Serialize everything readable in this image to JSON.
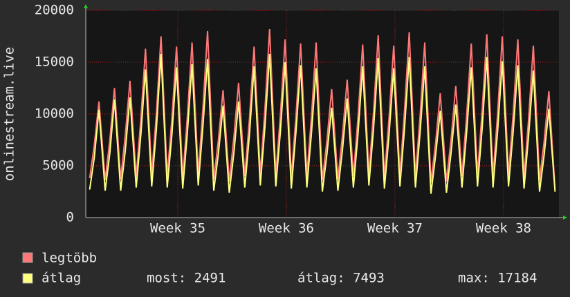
{
  "chart_data": {
    "type": "line",
    "y_label": "onlinestream.live",
    "x": [
      0.25,
      0.55,
      0.85,
      1.25,
      1.55,
      1.85,
      2.25,
      2.55,
      2.85,
      3.25,
      3.55,
      3.85,
      4.25,
      4.55,
      4.85,
      5.25,
      5.55,
      5.85,
      6.25,
      6.55,
      6.85,
      7.25,
      7.55,
      7.85,
      8.25,
      8.55,
      8.85,
      9.25,
      9.55,
      9.85,
      10.25,
      10.55,
      10.85,
      11.25,
      11.55,
      11.85,
      12.25,
      12.55,
      12.85,
      13.25,
      13.55,
      13.85,
      14.25,
      14.55,
      14.85,
      15.25,
      15.55,
      15.85,
      16.25,
      16.55,
      16.85,
      17.25,
      17.55,
      17.85,
      18.25,
      18.55,
      18.85,
      19.25,
      19.55,
      19.85,
      20.25,
      20.55,
      20.85,
      21.25,
      21.55,
      21.85,
      22.25,
      22.55,
      22.85,
      23.25,
      23.55,
      23.85,
      24.25,
      24.55,
      24.85,
      25.25,
      25.55,
      25.85,
      26.25,
      26.55,
      26.85,
      27.25,
      27.55,
      27.85,
      28.25,
      28.55,
      28.85,
      29.25,
      29.55,
      29.85,
      30.25
    ],
    "series": [
      {
        "name": "legtöbb",
        "color": "#ff7878",
        "values": [
          3800,
          7000,
          11200,
          3600,
          7500,
          12500,
          3700,
          8000,
          13200,
          3900,
          9500,
          16300,
          4100,
          10000,
          17500,
          4000,
          9500,
          16500,
          3800,
          9800,
          16900,
          4200,
          10500,
          18000,
          3700,
          7500,
          12300,
          3500,
          7800,
          13000,
          4000,
          9500,
          16500,
          4200,
          10500,
          18200,
          4100,
          10000,
          17200,
          3900,
          9800,
          16800,
          4000,
          9800,
          16900,
          3600,
          7500,
          12400,
          3700,
          8000,
          13300,
          4000,
          9700,
          16700,
          4200,
          10200,
          17600,
          3900,
          9600,
          16600,
          4100,
          10400,
          17900,
          4000,
          9800,
          16900,
          3400,
          7200,
          12000,
          3500,
          7600,
          12700,
          4000,
          9800,
          16800,
          4100,
          10300,
          17700,
          4000,
          10100,
          17500,
          4100,
          10000,
          17200,
          3900,
          9600,
          16600,
          3600,
          7400,
          12200,
          2700
        ]
      },
      {
        "name": "átlag",
        "color": "#ffff80",
        "values": [
          2700,
          5800,
          10400,
          2600,
          6200,
          11400,
          2600,
          6500,
          11600,
          2900,
          8000,
          14300,
          3000,
          8500,
          15800,
          2900,
          8000,
          14500,
          2800,
          8200,
          14800,
          3100,
          8800,
          15300,
          2600,
          6200,
          10800,
          2400,
          6300,
          11200,
          2900,
          8000,
          14600,
          3100,
          8800,
          15800,
          3000,
          8400,
          15000,
          2800,
          8300,
          14700,
          2900,
          8200,
          14400,
          2500,
          6200,
          10600,
          2600,
          6600,
          11500,
          2900,
          8100,
          14600,
          3100,
          8600,
          15400,
          2800,
          8000,
          14400,
          3000,
          8700,
          15500,
          2900,
          8200,
          14600,
          2300,
          6000,
          10300,
          2400,
          6300,
          10900,
          2900,
          8200,
          14500,
          3000,
          8600,
          15500,
          2900,
          8400,
          15100,
          3000,
          8300,
          14700,
          2800,
          8000,
          14200,
          2500,
          6100,
          10500,
          2491
        ]
      }
    ],
    "stats": [
      "most: 2491",
      "átlag: 7493",
      "max: 17184"
    ],
    "xlim": [
      0,
      30.5
    ],
    "xticks": [
      {
        "value": 5.93,
        "label": "Week 35"
      },
      {
        "value": 12.93,
        "label": "Week 36"
      },
      {
        "value": 19.93,
        "label": "Week 37"
      },
      {
        "value": 26.93,
        "label": "Week 38"
      }
    ],
    "ylim": [
      0,
      20000
    ],
    "yticks": [
      0,
      5000,
      10000,
      15000,
      20000
    ],
    "grid": true
  }
}
